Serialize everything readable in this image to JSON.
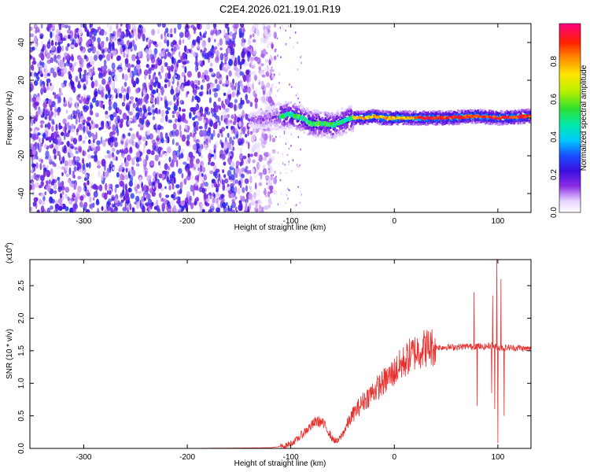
{
  "figure": {
    "title": "C2E4.2026.021.19.01.R19"
  },
  "chart_data": [
    {
      "type": "heatmap",
      "title": "",
      "xlabel": "Height of straight line (km)",
      "ylabel": "Frequency (Hz)",
      "xlim": [
        -352,
        132
      ],
      "ylim": [
        -50,
        50
      ],
      "x_ticks": [
        "-300",
        "-200",
        "-100",
        "0",
        "100"
      ],
      "y_ticks": [
        "-40",
        "-20",
        "0",
        "20",
        "40"
      ],
      "colorbar": {
        "label": "Normalized spectral amplitude",
        "range": [
          0,
          1
        ],
        "ticks": [
          "0.0",
          "0.2",
          "0.4",
          "0.6",
          "0.8"
        ],
        "colormap": "rainbow (white-violet-blue-cyan-green-yellow-orange-red-magenta)"
      },
      "regions": [
        {
          "description": "scattered low-amplitude noise",
          "x_range": [
            -352,
            -125
          ],
          "freq_range": [
            -50,
            50
          ],
          "amplitude": 0.15
        },
        {
          "description": "broadening signal band",
          "x_range": [
            -125,
            -40
          ],
          "freq_range": [
            -8,
            6
          ],
          "amplitude": 0.45
        },
        {
          "description": "narrow strong signal",
          "x_range": [
            -40,
            132
          ],
          "freq_range": [
            -2,
            3
          ],
          "amplitude": 0.9
        }
      ],
      "signal_center": {
        "x": [
          -130,
          -110,
          -100,
          -90,
          -80,
          -70,
          -60,
          -50,
          -40,
          -30,
          -20,
          -10,
          0,
          20,
          50,
          80,
          100,
          132
        ],
        "freq": [
          -1,
          1,
          2,
          0,
          -3,
          -3,
          -4,
          -2,
          0,
          0,
          1,
          0,
          0,
          0,
          0,
          1,
          0,
          1
        ]
      }
    },
    {
      "type": "line",
      "title": "",
      "xlabel": "Height of straight line (km)",
      "ylabel": "SNR (10 * v/v)",
      "y_multiplier_label": "(x10",
      "y_multiplier_exp": "4",
      "xlim": [
        -352,
        132
      ],
      "ylim": [
        0,
        2.9
      ],
      "x_ticks": [
        "-300",
        "-200",
        "-100",
        "0",
        "100"
      ],
      "y_ticks": [
        "0.0",
        "0.5",
        "1.0",
        "1.5",
        "2.0",
        "2.5"
      ],
      "series": [
        {
          "color": "#e8312f",
          "x": [
            -352,
            -300,
            -200,
            -120,
            -105,
            -100,
            -95,
            -90,
            -85,
            -80,
            -75,
            -70,
            -65,
            -60,
            -55,
            -50,
            -45,
            -40,
            -35,
            -30,
            -25,
            -20,
            -15,
            -10,
            -5,
            0,
            5,
            10,
            15,
            20,
            25,
            30,
            35,
            40,
            45,
            50,
            55,
            60,
            65,
            70,
            75,
            80,
            85,
            90,
            95,
            100,
            105,
            110,
            115,
            120,
            125,
            132
          ],
          "y": [
            0.0,
            0.0,
            0.0,
            0.01,
            0.04,
            0.08,
            0.12,
            0.2,
            0.28,
            0.35,
            0.42,
            0.4,
            0.3,
            0.15,
            0.1,
            0.22,
            0.38,
            0.52,
            0.62,
            0.72,
            0.8,
            0.88,
            0.95,
            1.02,
            1.1,
            1.18,
            1.26,
            1.34,
            1.42,
            1.48,
            1.52,
            1.55,
            1.56,
            1.56,
            1.55,
            1.56,
            1.55,
            1.56,
            1.56,
            1.57,
            1.56,
            1.58,
            1.55,
            1.57,
            1.58,
            1.55,
            1.54,
            1.55,
            1.54,
            1.55,
            1.53,
            1.53
          ],
          "spikes": [
            {
              "x": 77,
              "y": 2.4
            },
            {
              "x": 80,
              "y": 0.65
            },
            {
              "x": 94,
              "y": 0.85
            },
            {
              "x": 95,
              "y": 2.35
            },
            {
              "x": 97,
              "y": 0.6
            },
            {
              "x": 99,
              "y": 2.9
            },
            {
              "x": 100,
              "y": 0.08
            },
            {
              "x": 103,
              "y": 2.6
            },
            {
              "x": 106,
              "y": 0.5
            }
          ]
        }
      ]
    }
  ]
}
